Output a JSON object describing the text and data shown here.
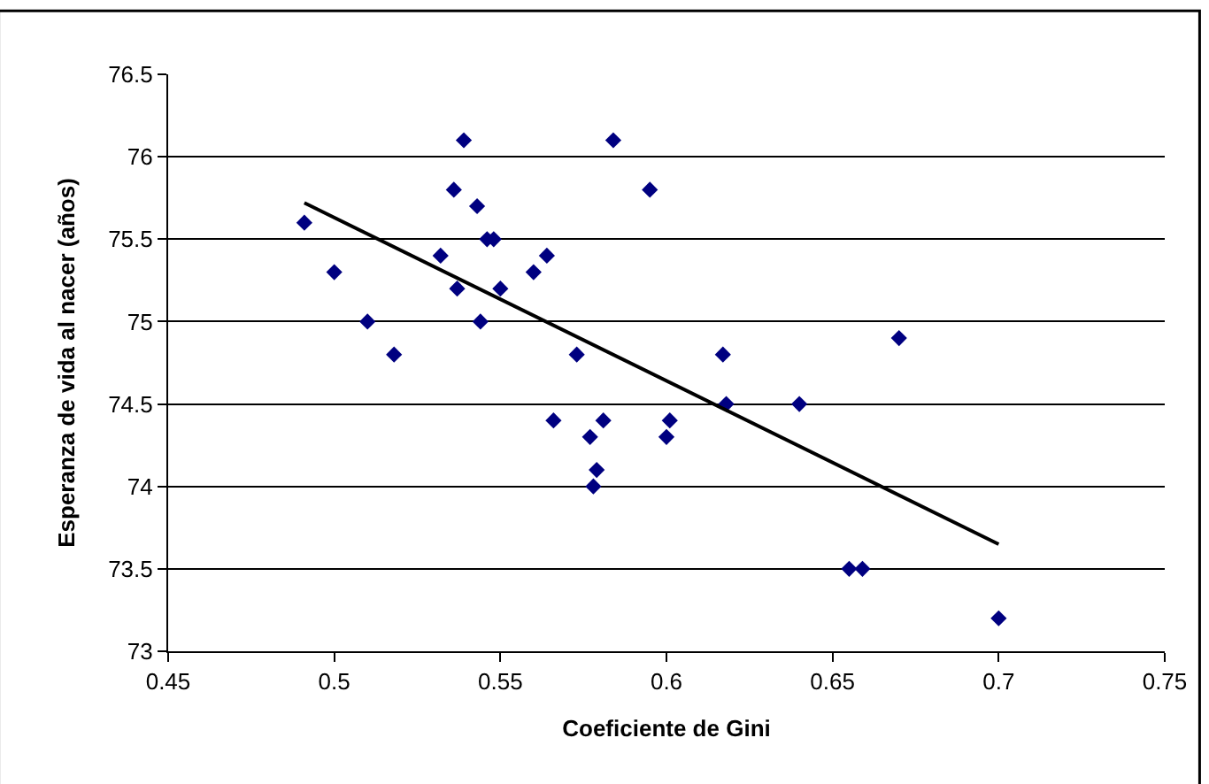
{
  "chart_data": {
    "type": "scatter",
    "xlabel": "Coeficiente de Gini",
    "ylabel": "Esperanza de vida al nacer (años)",
    "xlim": [
      0.45,
      0.75
    ],
    "xticks": [
      0.45,
      0.5,
      0.55,
      0.6,
      0.65,
      0.7,
      0.75
    ],
    "ylim": [
      73,
      76.5
    ],
    "yticks": [
      73,
      73.5,
      74,
      74.5,
      75,
      75.5,
      76,
      76.5
    ],
    "grid": "y",
    "series": [
      {
        "marker": "diamond",
        "color": "#000080",
        "x": [
          0.491,
          0.5,
          0.51,
          0.518,
          0.532,
          0.536,
          0.537,
          0.539,
          0.543,
          0.544,
          0.546,
          0.548,
          0.55,
          0.56,
          0.564,
          0.566,
          0.573,
          0.577,
          0.578,
          0.579,
          0.581,
          0.584,
          0.595,
          0.6,
          0.601,
          0.617,
          0.618,
          0.64,
          0.655,
          0.659,
          0.67,
          0.7
        ],
        "values": [
          75.6,
          75.3,
          75.0,
          74.8,
          75.4,
          75.8,
          75.2,
          76.1,
          75.7,
          75.0,
          75.5,
          75.5,
          75.2,
          75.3,
          75.4,
          74.4,
          74.8,
          74.3,
          74.0,
          74.1,
          74.4,
          76.1,
          75.8,
          74.3,
          74.4,
          74.8,
          74.5,
          74.5,
          73.5,
          73.5,
          74.9,
          73.2
        ]
      },
      {
        "type": "line",
        "color": "#000000",
        "x": [
          0.491,
          0.7
        ],
        "values": [
          75.72,
          73.65
        ]
      }
    ]
  }
}
